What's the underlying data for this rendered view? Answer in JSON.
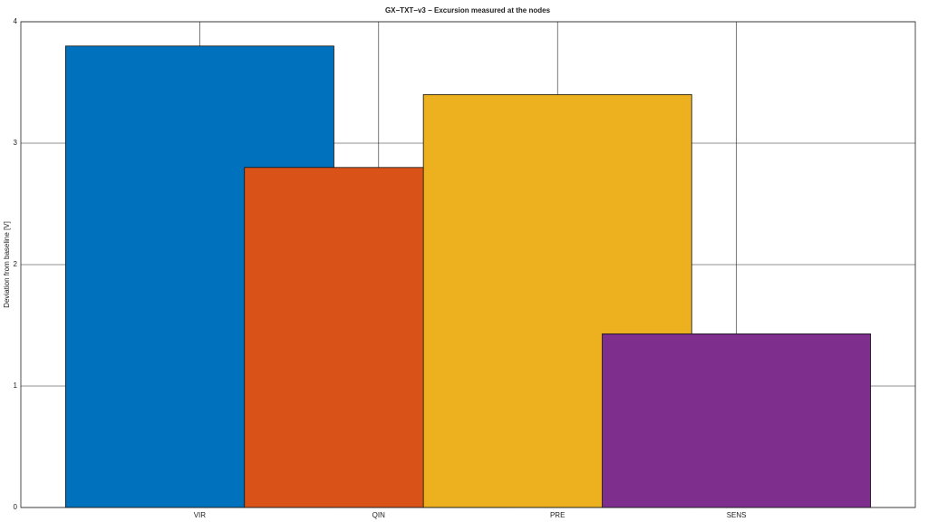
{
  "chart_data": {
    "type": "bar",
    "title": "GX−TXT−v3 − Excursion measured at the nodes",
    "ylabel": "Deviation from baseline [V]",
    "categories": [
      "VIR",
      "QIN",
      "PRE",
      "SENS"
    ],
    "values": [
      3.8,
      2.8,
      3.4,
      1.43
    ],
    "colors": [
      "#0072bd",
      "#d95319",
      "#edb120",
      "#7e2f8e"
    ],
    "ylim": [
      0,
      4
    ],
    "yticks": [
      0,
      1,
      2,
      3,
      4
    ],
    "grid": true
  }
}
